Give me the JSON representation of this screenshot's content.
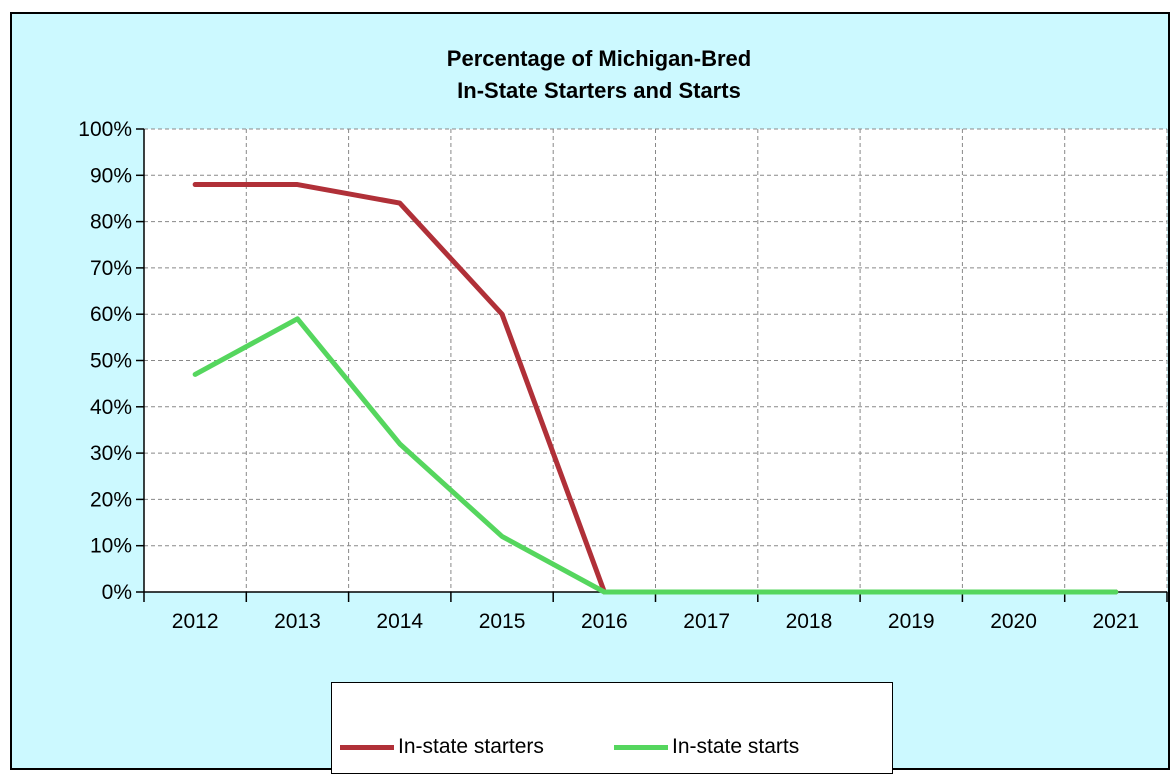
{
  "chart_data": {
    "type": "line",
    "title_lines": [
      "Percentage of Michigan-Bred",
      "In-State Starters and Starts"
    ],
    "categories": [
      "2012",
      "2013",
      "2014",
      "2015",
      "2016",
      "2017",
      "2018",
      "2019",
      "2020",
      "2021"
    ],
    "y_ticks": [
      "0%",
      "10%",
      "20%",
      "30%",
      "40%",
      "50%",
      "60%",
      "70%",
      "80%",
      "90%",
      "100%"
    ],
    "ylim": [
      0,
      100
    ],
    "grid": true,
    "legend_position": "bottom",
    "series": [
      {
        "name": "In-state starters",
        "color": "#b03038",
        "values": [
          88,
          88,
          84,
          60,
          0,
          0,
          0,
          0,
          0,
          0
        ]
      },
      {
        "name": "In-state starts",
        "color": "#55d65e",
        "values": [
          47,
          59,
          32,
          12,
          0,
          0,
          0,
          0,
          0,
          0
        ]
      }
    ]
  },
  "colors": {
    "background": "#ccf9ff",
    "plot": "#ffffff",
    "grid": "#888888"
  }
}
